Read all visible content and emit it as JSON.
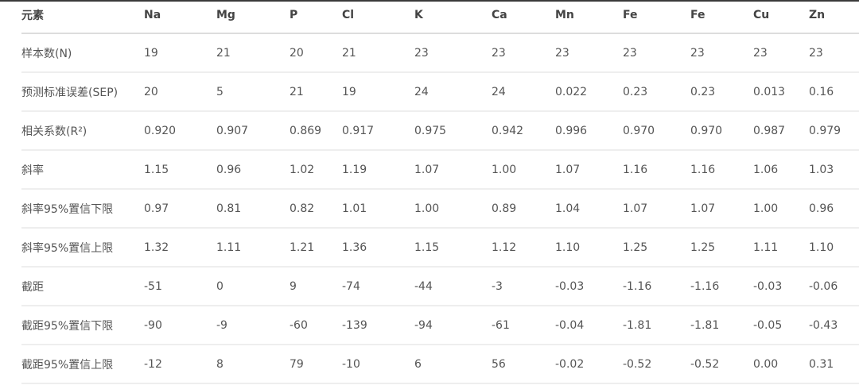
{
  "table": {
    "headers": [
      "元素",
      "Na",
      "Mg",
      "P",
      "Cl",
      "K",
      "Ca",
      "Mn",
      "Fe",
      "Fe",
      "Cu",
      "Zn"
    ],
    "rows": [
      [
        "样本数(N)",
        "19",
        "21",
        "20",
        "21",
        "23",
        "23",
        "23",
        "23",
        "23",
        "23",
        "23"
      ],
      [
        "预测标准误差(SEP)",
        "20",
        "5",
        "21",
        "19",
        "24",
        "24",
        "0.022",
        "0.23",
        "0.23",
        "0.013",
        "0.16"
      ],
      [
        "相关系数(R²)",
        "0.920",
        "0.907",
        "0.869",
        "0.917",
        "0.975",
        "0.942",
        "0.996",
        "0.970",
        "0.970",
        "0.987",
        "0.979"
      ],
      [
        "斜率",
        "1.15",
        "0.96",
        "1.02",
        "1.19",
        "1.07",
        "1.00",
        "1.07",
        "1.16",
        "1.16",
        "1.06",
        "1.03"
      ],
      [
        "斜率95%置信下限",
        "0.97",
        "0.81",
        "0.82",
        "1.01",
        "1.00",
        "0.89",
        "1.04",
        "1.07",
        "1.07",
        "1.00",
        "0.96"
      ],
      [
        "斜率95%置信上限",
        "1.32",
        "1.11",
        "1.21",
        "1.36",
        "1.15",
        "1.12",
        "1.10",
        "1.25",
        "1.25",
        "1.11",
        "1.10"
      ],
      [
        "截距",
        "-51",
        "0",
        "9",
        "-74",
        "-44",
        "-3",
        "-0.03",
        "-1.16",
        "-1.16",
        "-0.03",
        "-0.06"
      ],
      [
        "截距95%置信下限",
        "-90",
        "-9",
        "-60",
        "-139",
        "-94",
        "-61",
        "-0.04",
        "-1.81",
        "-1.81",
        "-0.05",
        "-0.43"
      ],
      [
        "截距95%置信上限",
        "-12",
        "8",
        "79",
        "-10",
        "6",
        "56",
        "-0.02",
        "-0.52",
        "-0.52",
        "0.00",
        "0.31"
      ]
    ]
  }
}
